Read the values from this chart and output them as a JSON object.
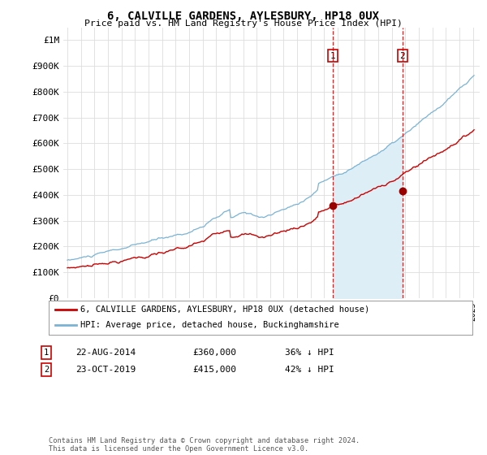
{
  "title": "6, CALVILLE GARDENS, AYLESBURY, HP18 0UX",
  "subtitle": "Price paid vs. HM Land Registry's House Price Index (HPI)",
  "ylabel_ticks": [
    "£0",
    "£100K",
    "£200K",
    "£300K",
    "£400K",
    "£500K",
    "£600K",
    "£700K",
    "£800K",
    "£900K",
    "£1M"
  ],
  "ytick_values": [
    0,
    100000,
    200000,
    300000,
    400000,
    500000,
    600000,
    700000,
    800000,
    900000,
    1000000
  ],
  "ylim": [
    0,
    1050000
  ],
  "hpi_color": "#7ab3d4",
  "hpi_fill_color": "#ddeef7",
  "price_color": "#cc0000",
  "vline_color": "#cc0000",
  "marker_color": "#990000",
  "sale1_x": 2014.625,
  "sale1_price": 360000,
  "sale2_x": 2019.792,
  "sale2_price": 415000,
  "sale1_date_label": "22-AUG-2014",
  "sale1_price_label": "£360,000",
  "sale1_pct_label": "36% ↓ HPI",
  "sale2_date_label": "23-OCT-2019",
  "sale2_price_label": "£415,000",
  "sale2_pct_label": "42% ↓ HPI",
  "legend_property": "6, CALVILLE GARDENS, AYLESBURY, HP18 0UX (detached house)",
  "legend_hpi": "HPI: Average price, detached house, Buckinghamshire",
  "footnote": "Contains HM Land Registry data © Crown copyright and database right 2024.\nThis data is licensed under the Open Government Licence v3.0.",
  "background_color": "#ffffff",
  "grid_color": "#dddddd",
  "xlim_left": 1994.7,
  "xlim_right": 2025.5,
  "hpi_seed": 10,
  "prop_seed": 7
}
